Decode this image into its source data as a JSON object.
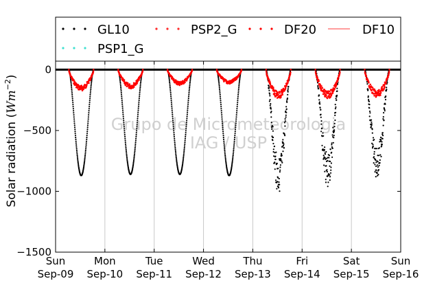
{
  "chart_data": {
    "type": "scatter",
    "title": "",
    "ylabel": "Solar radiation (Wm^-2)",
    "ylabel_main": "Solar radiation (",
    "ylabel_unit": "Wm",
    "ylabel_exp": "−2",
    "ylabel_close": ")",
    "xlabel": "",
    "ylim": [
      -1500,
      70
    ],
    "xlim": [
      0,
      7
    ],
    "yticks": [
      0,
      -500,
      -1000,
      -1500
    ],
    "ytick_labels": [
      "0",
      "−500",
      "−1000",
      "−1500"
    ],
    "xticks": [
      {
        "x": 0,
        "day": "Sun",
        "date": "Sep-09"
      },
      {
        "x": 1,
        "day": "Mon",
        "date": "Sep-10"
      },
      {
        "x": 2,
        "day": "Tue",
        "date": "Sep-11"
      },
      {
        "x": 3,
        "day": "Wed",
        "date": "Sep-12"
      },
      {
        "x": 4,
        "day": "Thu",
        "date": "Sep-13"
      },
      {
        "x": 5,
        "day": "Fri",
        "date": "Sep-14"
      },
      {
        "x": 6,
        "day": "Sat",
        "date": "Sep-15"
      },
      {
        "x": 7,
        "day": "Sun",
        "date": "Sep-16"
      }
    ],
    "grid": "vertical",
    "legend_position": "top",
    "watermark": [
      "Grupo de Micrometeorologia",
      "IAG / USP"
    ],
    "series": [
      {
        "name": "GL10",
        "color": "#000000",
        "style": "dots"
      },
      {
        "name": "PSP2_G",
        "color": "#ff2a2a",
        "style": "dots"
      },
      {
        "name": "DF20",
        "color": "#ff0000",
        "style": "dots"
      },
      {
        "name": "DF10",
        "color": "#ff6060",
        "style": "line"
      },
      {
        "name": "PSP1_G",
        "color": "#40e0d0",
        "style": "dots"
      }
    ],
    "daily_peaks": [
      {
        "day": "Sep-09",
        "global_min": -870,
        "diffuse_min": -190
      },
      {
        "day": "Sep-10",
        "global_min": -860,
        "diffuse_min": -170
      },
      {
        "day": "Sep-11",
        "global_min": -860,
        "diffuse_min": -140
      },
      {
        "day": "Sep-12",
        "global_min": -870,
        "diffuse_min": -130
      },
      {
        "day": "Sep-13",
        "global_min": -970,
        "diffuse_min": -260
      },
      {
        "day": "Sep-14",
        "global_min": -930,
        "diffuse_min": -260
      },
      {
        "day": "Sep-15",
        "global_min": -860,
        "diffuse_min": -250
      }
    ]
  }
}
